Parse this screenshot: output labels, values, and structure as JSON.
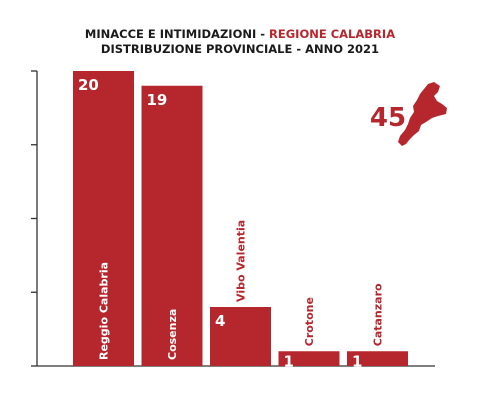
{
  "chart_data": {
    "type": "bar",
    "title_part1": "MINACCE E INTIMIDAZIONI - ",
    "title_part2": "REGIONE CALABRIA",
    "subtitle": "DISTRIBUZIONE PROVINCIALE - ANNO 2021",
    "categories": [
      "Reggio Calabria",
      "Cosenza",
      "Vibo Valentia",
      "Crotone",
      "Catanzaro"
    ],
    "values": [
      20,
      19,
      4,
      1,
      1
    ],
    "total": "45",
    "ylim": [
      0,
      20
    ],
    "yticks": [
      0,
      5,
      10,
      15,
      20
    ],
    "grid": false,
    "bar_color": "#b5272d",
    "title_color": "#1a1a1a",
    "accent_color": "#b5272d",
    "map_icon": "calabria-region-map-icon"
  }
}
